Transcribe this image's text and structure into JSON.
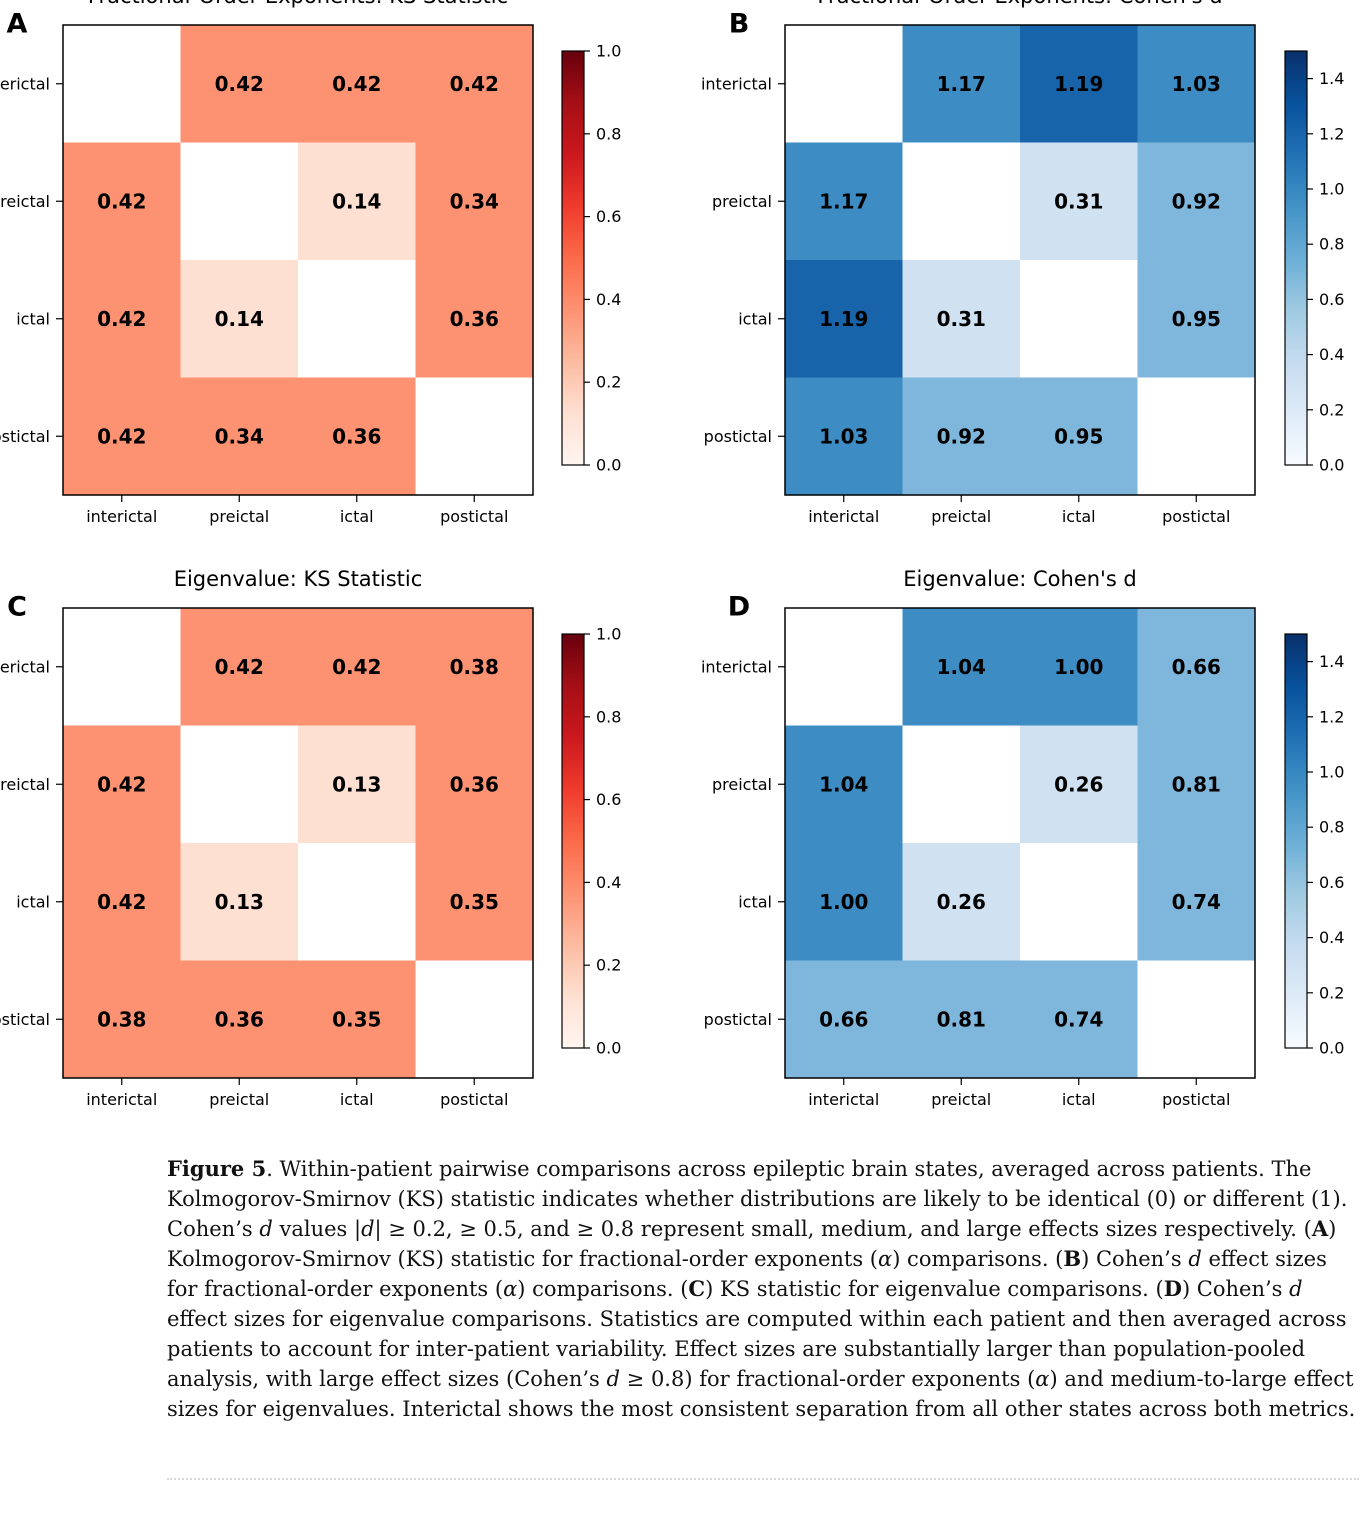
{
  "panels": [
    {
      "letter": "A",
      "title": "Fractional-Order Exponents: KS Statistic",
      "cmap": "Reds",
      "vmax": 1.0,
      "colorbar_ticks": [
        "0.0",
        "0.2",
        "0.4",
        "0.6",
        "0.8",
        "1.0"
      ],
      "colorbar_tick_values": [
        0.0,
        0.2,
        0.4,
        0.6,
        0.8,
        1.0
      ]
    },
    {
      "letter": "B",
      "title": "Fractional-Order Exponents: Cohen's d",
      "cmap": "Blues",
      "vmax": 1.5,
      "colorbar_ticks": [
        "0.0",
        "0.2",
        "0.4",
        "0.6",
        "0.8",
        "1.0",
        "1.2",
        "1.4"
      ],
      "colorbar_tick_values": [
        0.0,
        0.2,
        0.4,
        0.6,
        0.8,
        1.0,
        1.2,
        1.4
      ]
    },
    {
      "letter": "C",
      "title": "Eigenvalue: KS Statistic",
      "cmap": "Reds",
      "vmax": 1.0,
      "colorbar_ticks": [
        "0.0",
        "0.2",
        "0.4",
        "0.6",
        "0.8",
        "1.0"
      ],
      "colorbar_tick_values": [
        0.0,
        0.2,
        0.4,
        0.6,
        0.8,
        1.0
      ]
    },
    {
      "letter": "D",
      "title": "Eigenvalue: Cohen's d",
      "cmap": "Blues",
      "vmax": 1.5,
      "colorbar_ticks": [
        "0.0",
        "0.2",
        "0.4",
        "0.6",
        "0.8",
        "1.0",
        "1.2",
        "1.4"
      ],
      "colorbar_tick_values": [
        0.0,
        0.2,
        0.4,
        0.6,
        0.8,
        1.0,
        1.2,
        1.4
      ]
    }
  ],
  "chart_data": [
    {
      "type": "heatmap",
      "title": "Fractional-Order Exponents: KS Statistic",
      "x_categories": [
        "interictal",
        "preictal",
        "ictal",
        "postictal"
      ],
      "y_categories": [
        "interictal",
        "preictal",
        "ictal",
        "postictal"
      ],
      "values": [
        [
          null,
          0.42,
          0.42,
          0.42
        ],
        [
          0.42,
          null,
          0.14,
          0.34
        ],
        [
          0.42,
          0.14,
          null,
          0.36
        ],
        [
          0.42,
          0.34,
          0.36,
          null
        ]
      ],
      "colorbar_range": [
        0.0,
        1.0
      ]
    },
    {
      "type": "heatmap",
      "title": "Fractional-Order Exponents: Cohen's d",
      "x_categories": [
        "interictal",
        "preictal",
        "ictal",
        "postictal"
      ],
      "y_categories": [
        "interictal",
        "preictal",
        "ictal",
        "postictal"
      ],
      "values": [
        [
          null,
          1.17,
          1.19,
          1.03
        ],
        [
          1.17,
          null,
          0.31,
          0.92
        ],
        [
          1.19,
          0.31,
          null,
          0.95
        ],
        [
          1.03,
          0.92,
          0.95,
          null
        ]
      ],
      "colorbar_range": [
        0.0,
        1.5
      ]
    },
    {
      "type": "heatmap",
      "title": "Eigenvalue: KS Statistic",
      "x_categories": [
        "interictal",
        "preictal",
        "ictal",
        "postictal"
      ],
      "y_categories": [
        "interictal",
        "preictal",
        "ictal",
        "postictal"
      ],
      "values": [
        [
          null,
          0.42,
          0.42,
          0.38
        ],
        [
          0.42,
          null,
          0.13,
          0.36
        ],
        [
          0.42,
          0.13,
          null,
          0.35
        ],
        [
          0.38,
          0.36,
          0.35,
          null
        ]
      ],
      "colorbar_range": [
        0.0,
        1.0
      ]
    },
    {
      "type": "heatmap",
      "title": "Eigenvalue: Cohen's d",
      "x_categories": [
        "interictal",
        "preictal",
        "ictal",
        "postictal"
      ],
      "y_categories": [
        "interictal",
        "preictal",
        "ictal",
        "postictal"
      ],
      "values": [
        [
          null,
          1.04,
          1.0,
          0.66
        ],
        [
          1.04,
          null,
          0.26,
          0.81
        ],
        [
          1.0,
          0.26,
          null,
          0.74
        ],
        [
          0.66,
          0.81,
          0.74,
          null
        ]
      ],
      "colorbar_range": [
        0.0,
        1.5
      ]
    }
  ],
  "colors": {
    "reds_bins": [
      "#fee0d2",
      "#fc9272",
      "#fb6a4a",
      "#de2d26",
      "#a50f15",
      "#67000d"
    ],
    "blues_bins": [
      "#d0e1f2",
      "#7fb6db",
      "#3d8dc4",
      "#1764ab",
      "#08306b"
    ],
    "reds_gradient": [
      "#fff5f0",
      "#fee0d2",
      "#fcbba1",
      "#fc9272",
      "#fb6a4a",
      "#ef3b2c",
      "#cb181d",
      "#a50f15",
      "#67000d"
    ],
    "blues_gradient": [
      "#f7fbff",
      "#deebf7",
      "#c6dbef",
      "#9ecae1",
      "#6baed6",
      "#4292c6",
      "#2171b5",
      "#08519c",
      "#08306b"
    ]
  },
  "caption": {
    "label": "Figure 5",
    "s1": "Within-patient pairwise comparisons across epileptic brain states, averaged across patients. The Kolmogorov-Smirnov (KS) statistic indicates whether distributions are likely to be identical (0) or different (1). Cohen’s",
    "d1": "d",
    "s2": "values |",
    "d2": "d",
    "s3": "| ≥ 0.2, ≥ 0.5,  and  ≥ 0.8 represent small, medium, and large effects sizes respectively. (",
    "a_label": "A",
    "s4": ") Kolmogorov-Smirnov (KS) statistic for fractional-order exponents (",
    "alpha1": "α",
    "s5": ") comparisons. (",
    "b_label": "B",
    "s6": ") Cohen’s",
    "d3": "d",
    "s7": "effect sizes for fractional-order exponents (",
    "alpha2": "α",
    "s8": ") comparisons. (",
    "c_label": "C",
    "s9": ") KS statistic for eigenvalue comparisons. (",
    "d_label": "D",
    "s10": ") Cohen’s",
    "d4": "d",
    "s11": "effect sizes for eigenvalue comparisons. Statistics are computed within each patient and then averaged across patients to account for inter-patient variability. Effect sizes are substantially larger than population-pooled analysis, with large effect sizes (Cohen’s",
    "d5": "d",
    "s12": "≥ 0.8) for fractional-order exponents (",
    "alpha3": "α",
    "s13": ") and medium-to-large effect sizes for eigenvalues. Interictal shows the most consistent separation from all other states across both metrics."
  }
}
